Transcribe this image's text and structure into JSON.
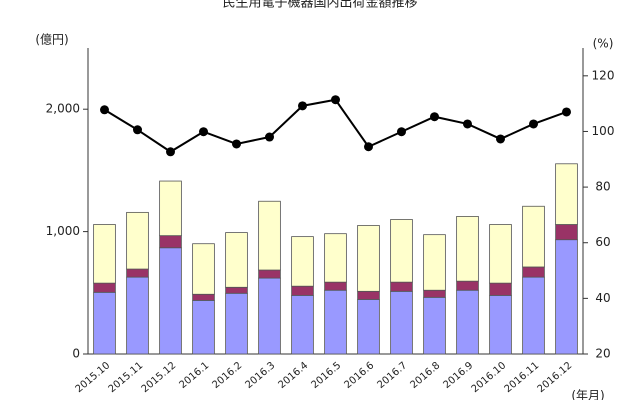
{
  "chart_data": {
    "type": "bar",
    "stacked": true,
    "title": "民生用電子機器国内出荷金額推移",
    "y_label": "(億円)",
    "y2_label": "(%)",
    "x_label": "(年月)",
    "categories": [
      "2015.10",
      "2015.11",
      "2015.12",
      "2016.1",
      "2016.2",
      "2016.3",
      "2016.4",
      "2016.5",
      "2016.6",
      "2016.7",
      "2016.8",
      "2016.9",
      "2016.10",
      "2016.11",
      "2016.12"
    ],
    "ylim": [
      0,
      2500
    ],
    "yticks": [
      0,
      {
        "value": 1000,
        "label": "1,000"
      },
      {
        "value": 2000,
        "label": "2,000"
      }
    ],
    "y2lim": [
      20,
      130
    ],
    "y2ticks": [
      20,
      40,
      60,
      80,
      100,
      120
    ],
    "series": [
      {
        "type": "bar",
        "color": "#9999ff",
        "values": [
          504,
          628,
          868,
          438,
          496,
          620,
          479,
          521,
          446,
          512,
          463,
          521,
          479,
          628,
          934
        ]
      },
      {
        "type": "bar",
        "color": "#993366",
        "values": [
          75,
          66,
          99,
          50,
          49,
          66,
          75,
          66,
          66,
          75,
          58,
          74,
          100,
          83,
          124
        ]
      },
      {
        "type": "bar",
        "color": "#ffffcc",
        "values": [
          479,
          463,
          446,
          413,
          447,
          562,
          405,
          396,
          538,
          512,
          454,
          529,
          479,
          496,
          496
        ]
      },
      {
        "type": "line",
        "axis": "y2",
        "color": "#000000",
        "values": [
          107.8,
          100.6,
          92.7,
          99.9,
          95.5,
          98.0,
          109.2,
          111.4,
          94.5,
          99.9,
          105.3,
          102.7,
          97.3,
          102.7,
          107.0
        ]
      }
    ]
  }
}
